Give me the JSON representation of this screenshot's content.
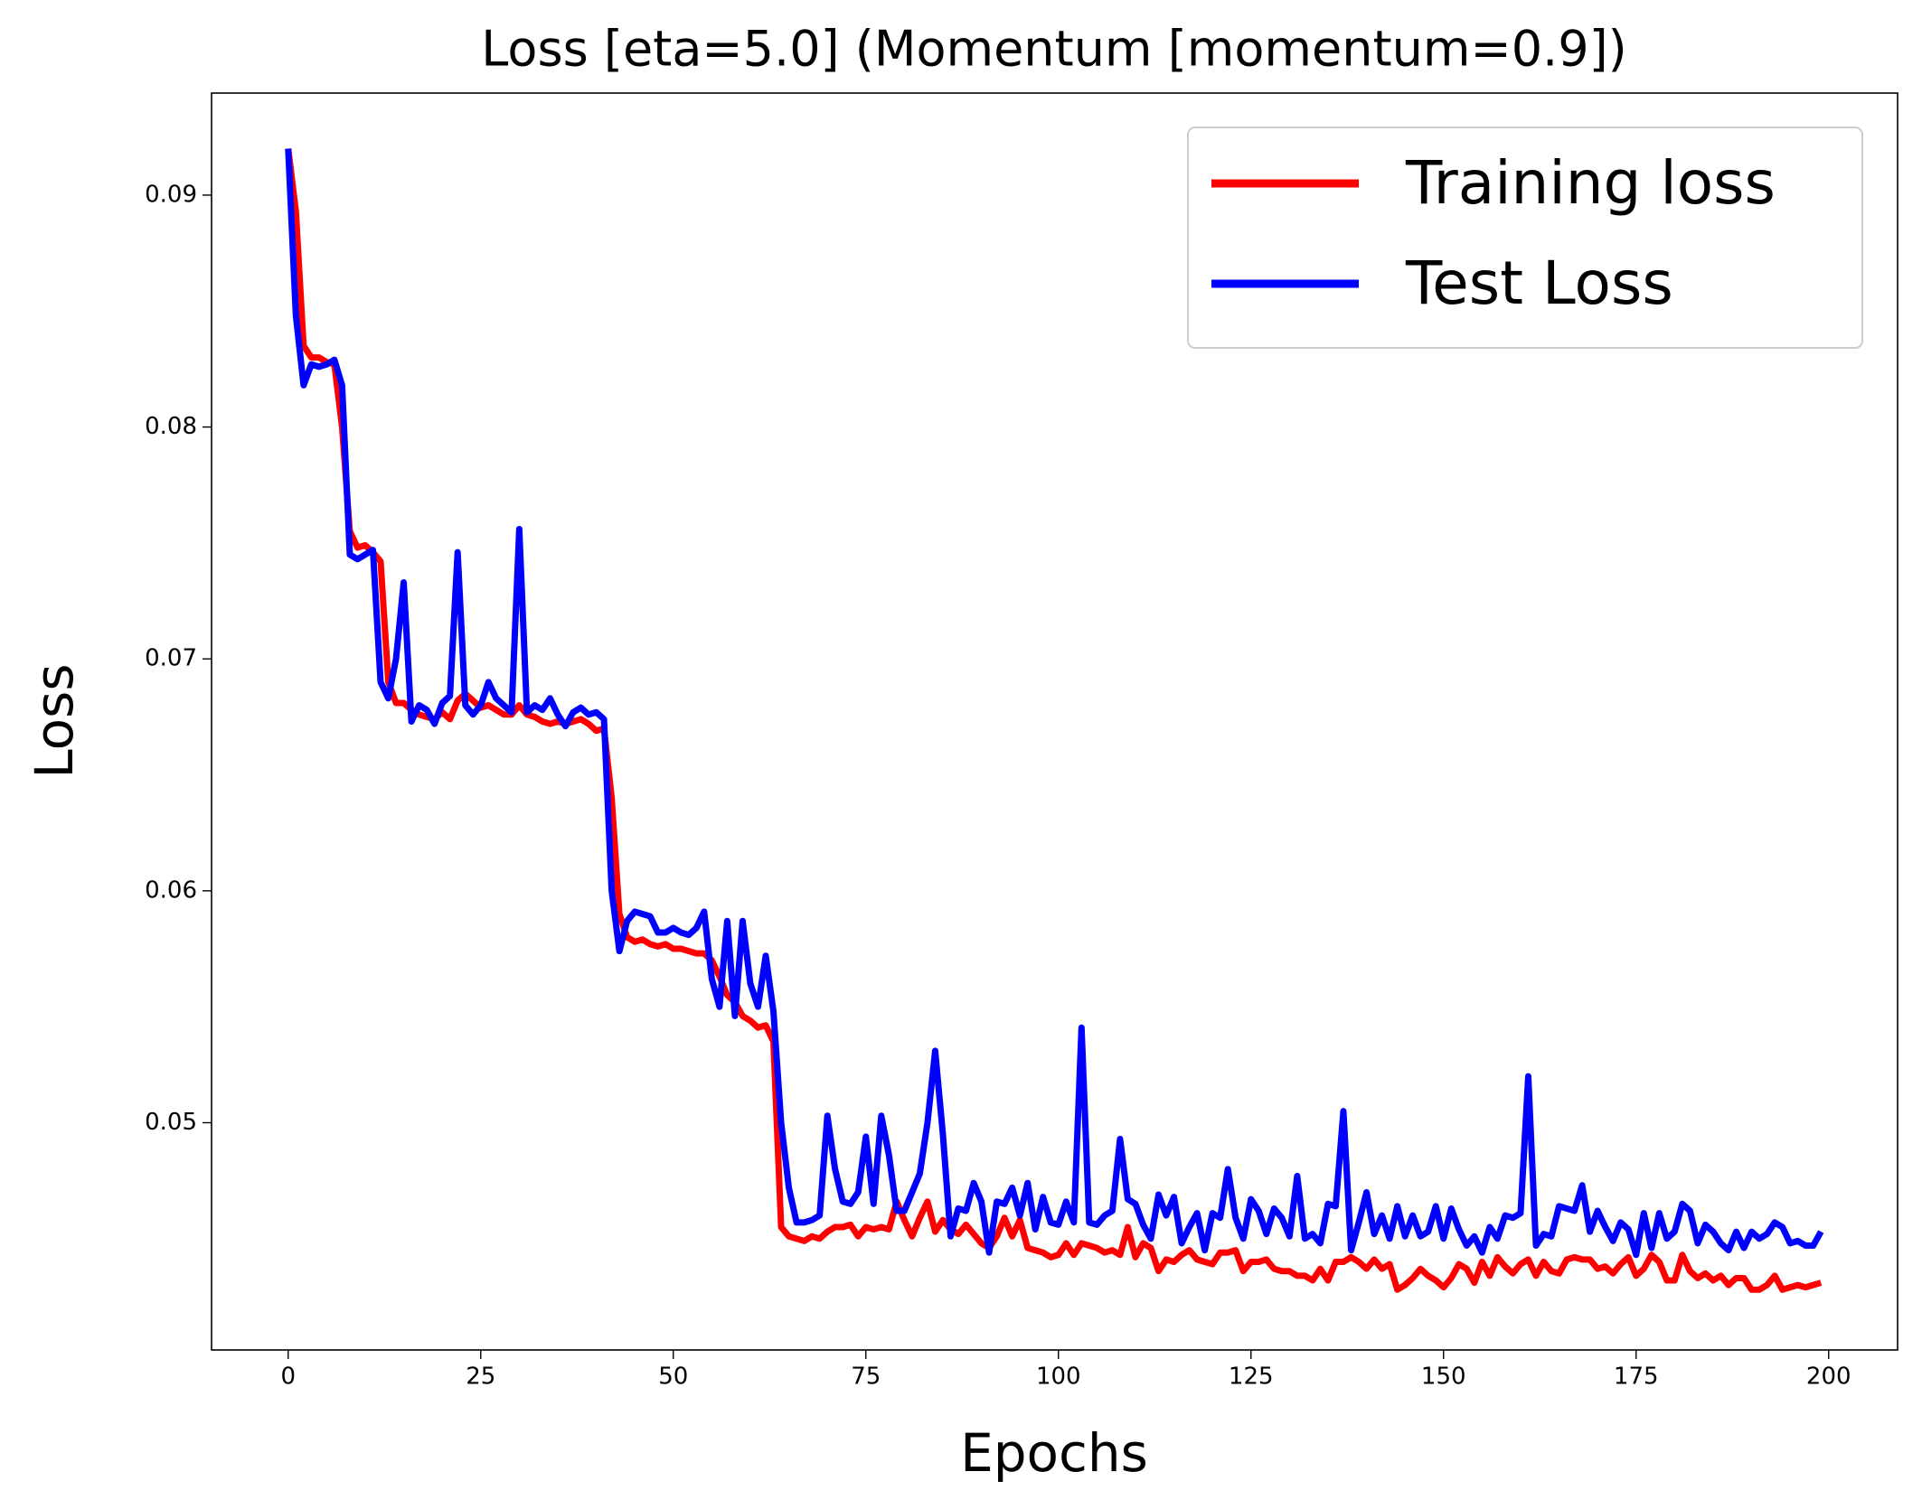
{
  "chart_data": {
    "type": "line",
    "title": "Loss [eta=5.0] (Momentum [momentum=0.9])",
    "x_label": "Epochs",
    "y_label": "Loss",
    "x": [
      0,
      1,
      2,
      3,
      4,
      5,
      6,
      7,
      8,
      9,
      10,
      11,
      12,
      13,
      14,
      15,
      16,
      17,
      18,
      19,
      20,
      21,
      22,
      23,
      24,
      25,
      26,
      27,
      28,
      29,
      30,
      31,
      32,
      33,
      34,
      35,
      36,
      37,
      38,
      39,
      40,
      41,
      42,
      43,
      44,
      45,
      46,
      47,
      48,
      49,
      50,
      51,
      52,
      53,
      54,
      55,
      56,
      57,
      58,
      59,
      60,
      61,
      62,
      63,
      64,
      65,
      66,
      67,
      68,
      69,
      70,
      71,
      72,
      73,
      74,
      75,
      76,
      77,
      78,
      79,
      80,
      81,
      82,
      83,
      84,
      85,
      86,
      87,
      88,
      89,
      90,
      91,
      92,
      93,
      94,
      95,
      96,
      97,
      98,
      99,
      100,
      101,
      102,
      103,
      104,
      105,
      106,
      107,
      108,
      109,
      110,
      111,
      112,
      113,
      114,
      115,
      116,
      117,
      118,
      119,
      120,
      121,
      122,
      123,
      124,
      125,
      126,
      127,
      128,
      129,
      130,
      131,
      132,
      133,
      134,
      135,
      136,
      137,
      138,
      139,
      140,
      141,
      142,
      143,
      144,
      145,
      146,
      147,
      148,
      149,
      150,
      151,
      152,
      153,
      154,
      155,
      156,
      157,
      158,
      159,
      160,
      161,
      162,
      163,
      164,
      165,
      166,
      167,
      168,
      169,
      170,
      171,
      172,
      173,
      174,
      175,
      176,
      177,
      178,
      179,
      180,
      181,
      182,
      183,
      184,
      185,
      186,
      187,
      188,
      189,
      190,
      191,
      192,
      193,
      194,
      195,
      196,
      197,
      198,
      199
    ],
    "series": [
      {
        "name": "Training loss",
        "color": "#ff0000",
        "values": [
          0.092,
          0.0893,
          0.0835,
          0.083,
          0.083,
          0.0828,
          0.0827,
          0.08,
          0.0755,
          0.0748,
          0.0749,
          0.0746,
          0.0742,
          0.069,
          0.0681,
          0.0681,
          0.0678,
          0.0676,
          0.0675,
          0.0674,
          0.0677,
          0.0674,
          0.0682,
          0.0685,
          0.0682,
          0.0679,
          0.068,
          0.0678,
          0.0676,
          0.0676,
          0.068,
          0.0676,
          0.0675,
          0.0673,
          0.0672,
          0.0673,
          0.0672,
          0.0673,
          0.0674,
          0.0672,
          0.0669,
          0.067,
          0.064,
          0.059,
          0.058,
          0.0578,
          0.0579,
          0.0577,
          0.0576,
          0.0577,
          0.0575,
          0.0575,
          0.0574,
          0.0573,
          0.0573,
          0.057,
          0.0563,
          0.0555,
          0.0552,
          0.0546,
          0.0544,
          0.0541,
          0.0542,
          0.0535,
          0.0455,
          0.0451,
          0.045,
          0.0449,
          0.0451,
          0.045,
          0.0453,
          0.0455,
          0.0455,
          0.0456,
          0.0451,
          0.0455,
          0.0454,
          0.0455,
          0.0454,
          0.0466,
          0.0458,
          0.0451,
          0.0459,
          0.0466,
          0.0453,
          0.0458,
          0.0454,
          0.0452,
          0.0456,
          0.0452,
          0.0448,
          0.0446,
          0.0451,
          0.0459,
          0.0451,
          0.0458,
          0.0446,
          0.0445,
          0.0444,
          0.0442,
          0.0443,
          0.0448,
          0.0443,
          0.0448,
          0.0447,
          0.0446,
          0.0444,
          0.0445,
          0.0443,
          0.0455,
          0.0442,
          0.0448,
          0.0446,
          0.0436,
          0.0441,
          0.044,
          0.0443,
          0.0445,
          0.0441,
          0.044,
          0.0439,
          0.0444,
          0.0444,
          0.0445,
          0.0436,
          0.044,
          0.044,
          0.0441,
          0.0437,
          0.0436,
          0.0436,
          0.0434,
          0.0434,
          0.0432,
          0.0437,
          0.0432,
          0.044,
          0.044,
          0.0442,
          0.044,
          0.0437,
          0.0441,
          0.0437,
          0.0439,
          0.0428,
          0.043,
          0.0433,
          0.0437,
          0.0434,
          0.0432,
          0.0429,
          0.0433,
          0.0439,
          0.0437,
          0.0431,
          0.044,
          0.0434,
          0.0442,
          0.0438,
          0.0435,
          0.0439,
          0.0441,
          0.0434,
          0.044,
          0.0436,
          0.0435,
          0.0441,
          0.0442,
          0.0441,
          0.0441,
          0.0437,
          0.0438,
          0.0435,
          0.0439,
          0.0442,
          0.0434,
          0.0437,
          0.0443,
          0.044,
          0.0432,
          0.0432,
          0.0443,
          0.0436,
          0.0433,
          0.0435,
          0.0432,
          0.0434,
          0.043,
          0.0433,
          0.0433,
          0.0428,
          0.0428,
          0.043,
          0.0434,
          0.0428,
          0.0429,
          0.043,
          0.0429,
          0.043,
          0.0431
        ]
      },
      {
        "name": "Test Loss",
        "color": "#0000ff",
        "values": [
          0.092,
          0.0848,
          0.0818,
          0.0827,
          0.0826,
          0.0827,
          0.0829,
          0.0818,
          0.0745,
          0.0743,
          0.0745,
          0.0747,
          0.069,
          0.0683,
          0.07,
          0.0733,
          0.0673,
          0.068,
          0.0678,
          0.0672,
          0.0681,
          0.0684,
          0.0746,
          0.068,
          0.0676,
          0.068,
          0.069,
          0.0683,
          0.068,
          0.0677,
          0.0756,
          0.0677,
          0.068,
          0.0678,
          0.0683,
          0.0676,
          0.0671,
          0.0677,
          0.0679,
          0.0676,
          0.0677,
          0.0674,
          0.06,
          0.0574,
          0.0587,
          0.0591,
          0.059,
          0.0589,
          0.0582,
          0.0582,
          0.0584,
          0.0582,
          0.0581,
          0.0584,
          0.0591,
          0.0562,
          0.055,
          0.0587,
          0.0546,
          0.0587,
          0.056,
          0.055,
          0.0572,
          0.0548,
          0.05,
          0.0472,
          0.0457,
          0.0457,
          0.0458,
          0.046,
          0.0503,
          0.048,
          0.0466,
          0.0465,
          0.047,
          0.0494,
          0.0465,
          0.0503,
          0.0486,
          0.0462,
          0.0462,
          0.047,
          0.0478,
          0.05,
          0.0531,
          0.0495,
          0.0451,
          0.0463,
          0.0462,
          0.0474,
          0.0466,
          0.0444,
          0.0466,
          0.0465,
          0.0472,
          0.046,
          0.0474,
          0.0454,
          0.0468,
          0.0457,
          0.0456,
          0.0466,
          0.0457,
          0.0541,
          0.0457,
          0.0456,
          0.046,
          0.0462,
          0.0493,
          0.0467,
          0.0465,
          0.0456,
          0.045,
          0.0469,
          0.046,
          0.0468,
          0.0448,
          0.0455,
          0.0461,
          0.0445,
          0.0461,
          0.0459,
          0.048,
          0.0459,
          0.045,
          0.0467,
          0.0462,
          0.0452,
          0.0463,
          0.0459,
          0.0451,
          0.0477,
          0.045,
          0.0452,
          0.0448,
          0.0465,
          0.0464,
          0.0505,
          0.0445,
          0.0457,
          0.047,
          0.0452,
          0.046,
          0.045,
          0.0464,
          0.0451,
          0.046,
          0.0451,
          0.0453,
          0.0464,
          0.045,
          0.0463,
          0.0454,
          0.0447,
          0.0451,
          0.0444,
          0.0455,
          0.045,
          0.046,
          0.0459,
          0.0461,
          0.052,
          0.0447,
          0.0452,
          0.0451,
          0.0464,
          0.0463,
          0.0462,
          0.0473,
          0.0453,
          0.0462,
          0.0455,
          0.0449,
          0.0457,
          0.0454,
          0.0443,
          0.0461,
          0.0446,
          0.0461,
          0.045,
          0.0453,
          0.0465,
          0.0462,
          0.0448,
          0.0456,
          0.0453,
          0.0448,
          0.0445,
          0.0453,
          0.0446,
          0.0453,
          0.045,
          0.0452,
          0.0457,
          0.0455,
          0.0448,
          0.0449,
          0.0447,
          0.0447,
          0.0453
        ]
      }
    ],
    "xlim": [
      -9.95,
      208.95
    ],
    "xticks": [
      0,
      25,
      50,
      75,
      100,
      125,
      150,
      175,
      200
    ],
    "ylim": [
      0.0402,
      0.0944
    ],
    "yticks": [
      0.05,
      0.06,
      0.07,
      0.08,
      0.09
    ],
    "grid": false,
    "legend": "upper right"
  }
}
